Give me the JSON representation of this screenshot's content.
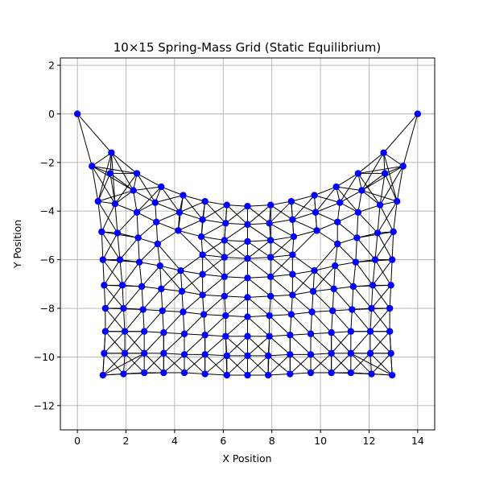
{
  "chart_data": {
    "type": "scatter",
    "title": "10×15 Spring-Mass Grid (Static Equilibrium)",
    "xlabel": "X Position",
    "ylabel": "Y Position",
    "xlim": [
      -0.7,
      14.7
    ],
    "ylim": [
      -13,
      2.3
    ],
    "xticks": [
      0,
      2,
      4,
      6,
      8,
      10,
      12,
      14
    ],
    "yticks": [
      2,
      0,
      -2,
      -4,
      -6,
      -8,
      -10,
      -12
    ],
    "grid": true,
    "colors": {
      "nodes": "#0000ff",
      "springs": "#000000",
      "grid": "#b0b0b0"
    },
    "rows": 15,
    "cols": 10,
    "anchors": [
      [
        0,
        0
      ],
      [
        14,
        0
      ]
    ],
    "nodes": [
      [
        [
          0.6,
          -2.15
        ],
        [
          1.4,
          -1.6
        ],
        [
          12.6,
          -1.6
        ],
        [
          13.4,
          -2.15
        ]
      ],
      [
        [
          0.85,
          -3.6
        ],
        [
          1.35,
          -2.45
        ],
        [
          2.45,
          -2.45
        ],
        [
          3.45,
          -3.0
        ],
        [
          4.35,
          -3.35
        ],
        [
          5.25,
          -3.6
        ],
        [
          6.15,
          -3.75
        ],
        [
          7.0,
          -3.8
        ],
        [
          7.95,
          -3.75
        ],
        [
          8.8,
          -3.6
        ],
        [
          9.75,
          -3.35
        ],
        [
          10.65,
          -3.0
        ],
        [
          11.55,
          -2.45
        ],
        [
          12.65,
          -2.45
        ],
        [
          13.15,
          -3.6
        ]
      ],
      [
        [
          1.0,
          -4.85
        ],
        [
          1.55,
          -3.7
        ],
        [
          2.3,
          -3.15
        ],
        [
          3.2,
          -3.65
        ],
        [
          4.2,
          -4.05
        ],
        [
          5.15,
          -4.35
        ],
        [
          6.1,
          -4.5
        ],
        [
          7.0,
          -4.55
        ],
        [
          7.9,
          -4.5
        ],
        [
          8.85,
          -4.35
        ],
        [
          9.8,
          -4.05
        ],
        [
          10.8,
          -3.65
        ],
        [
          11.7,
          -3.15
        ],
        [
          12.45,
          -3.75
        ],
        [
          13.0,
          -4.85
        ]
      ],
      [
        [
          1.65,
          -4.9
        ],
        [
          2.45,
          -4.05
        ],
        [
          2.5,
          -5.1
        ],
        [
          3.25,
          -4.45
        ],
        [
          3.3,
          -5.35
        ],
        [
          4.15,
          -4.8
        ],
        [
          5.1,
          -5.05
        ],
        [
          6.05,
          -5.2
        ],
        [
          7.0,
          -5.25
        ],
        [
          7.95,
          -5.2
        ],
        [
          8.9,
          -5.05
        ],
        [
          9.85,
          -4.8
        ],
        [
          10.7,
          -4.45
        ],
        [
          10.7,
          -5.35
        ],
        [
          11.55,
          -4.05
        ],
        [
          11.5,
          -5.1
        ],
        [
          12.35,
          -4.9
        ]
      ],
      [
        [
          1.05,
          -6.0
        ],
        [
          1.75,
          -6.0
        ],
        [
          2.55,
          -6.1
        ],
        [
          3.4,
          -6.25
        ],
        [
          4.25,
          -6.45
        ],
        [
          5.15,
          -5.8
        ],
        [
          5.15,
          -6.6
        ],
        [
          6.05,
          -5.9
        ],
        [
          6.05,
          -6.7
        ],
        [
          7.0,
          -5.95
        ],
        [
          7.0,
          -6.75
        ],
        [
          7.95,
          -5.9
        ],
        [
          7.95,
          -6.7
        ],
        [
          8.85,
          -5.8
        ],
        [
          8.85,
          -6.6
        ],
        [
          9.75,
          -6.45
        ],
        [
          10.6,
          -6.25
        ],
        [
          11.45,
          -6.1
        ],
        [
          12.25,
          -6.0
        ],
        [
          12.95,
          -6.0
        ]
      ],
      [
        [
          1.1,
          -7.05
        ],
        [
          1.85,
          -7.05
        ],
        [
          2.65,
          -7.1
        ],
        [
          3.45,
          -7.2
        ],
        [
          4.3,
          -7.3
        ],
        [
          5.15,
          -7.45
        ],
        [
          6.05,
          -7.5
        ],
        [
          7.0,
          -7.55
        ],
        [
          7.95,
          -7.5
        ],
        [
          8.85,
          -7.45
        ],
        [
          9.7,
          -7.3
        ],
        [
          10.55,
          -7.2
        ],
        [
          11.35,
          -7.1
        ],
        [
          12.15,
          -7.05
        ],
        [
          12.9,
          -7.05
        ]
      ],
      [
        [
          1.15,
          -8.0
        ],
        [
          1.9,
          -8.0
        ],
        [
          2.7,
          -8.05
        ],
        [
          3.5,
          -8.1
        ],
        [
          4.35,
          -8.15
        ],
        [
          5.2,
          -8.25
        ],
        [
          6.1,
          -8.3
        ],
        [
          7.0,
          -8.35
        ],
        [
          7.9,
          -8.3
        ],
        [
          8.8,
          -8.25
        ],
        [
          9.65,
          -8.15
        ],
        [
          10.5,
          -8.1
        ],
        [
          11.3,
          -8.05
        ],
        [
          12.1,
          -8.0
        ],
        [
          12.85,
          -8.0
        ]
      ],
      [
        [
          1.15,
          -8.95
        ],
        [
          1.95,
          -8.95
        ],
        [
          2.75,
          -8.95
        ],
        [
          3.55,
          -9.0
        ],
        [
          4.4,
          -9.05
        ],
        [
          5.25,
          -9.1
        ],
        [
          6.1,
          -9.15
        ],
        [
          7.0,
          -9.15
        ],
        [
          7.9,
          -9.15
        ],
        [
          8.75,
          -9.1
        ],
        [
          9.6,
          -9.05
        ],
        [
          10.45,
          -9.0
        ],
        [
          11.25,
          -8.95
        ],
        [
          12.05,
          -8.95
        ],
        [
          12.85,
          -8.95
        ]
      ],
      [
        [
          1.1,
          -9.85
        ],
        [
          1.95,
          -9.85
        ],
        [
          2.75,
          -9.85
        ],
        [
          3.55,
          -9.85
        ],
        [
          4.4,
          -9.9
        ],
        [
          5.25,
          -9.9
        ],
        [
          6.15,
          -9.95
        ],
        [
          7.0,
          -9.95
        ],
        [
          7.85,
          -9.95
        ],
        [
          8.75,
          -9.9
        ],
        [
          9.6,
          -9.9
        ],
        [
          10.45,
          -9.85
        ],
        [
          11.25,
          -9.85
        ],
        [
          12.05,
          -9.85
        ],
        [
          12.9,
          -9.85
        ]
      ],
      [
        [
          1.05,
          -10.75
        ],
        [
          1.9,
          -10.7
        ],
        [
          2.75,
          -10.65
        ],
        [
          3.55,
          -10.65
        ],
        [
          4.4,
          -10.65
        ],
        [
          5.25,
          -10.7
        ],
        [
          6.15,
          -10.75
        ],
        [
          7.0,
          -10.75
        ],
        [
          7.85,
          -10.75
        ],
        [
          8.75,
          -10.7
        ],
        [
          9.6,
          -10.65
        ],
        [
          10.45,
          -10.65
        ],
        [
          11.25,
          -10.65
        ],
        [
          12.1,
          -10.7
        ],
        [
          12.95,
          -10.75
        ]
      ]
    ]
  }
}
